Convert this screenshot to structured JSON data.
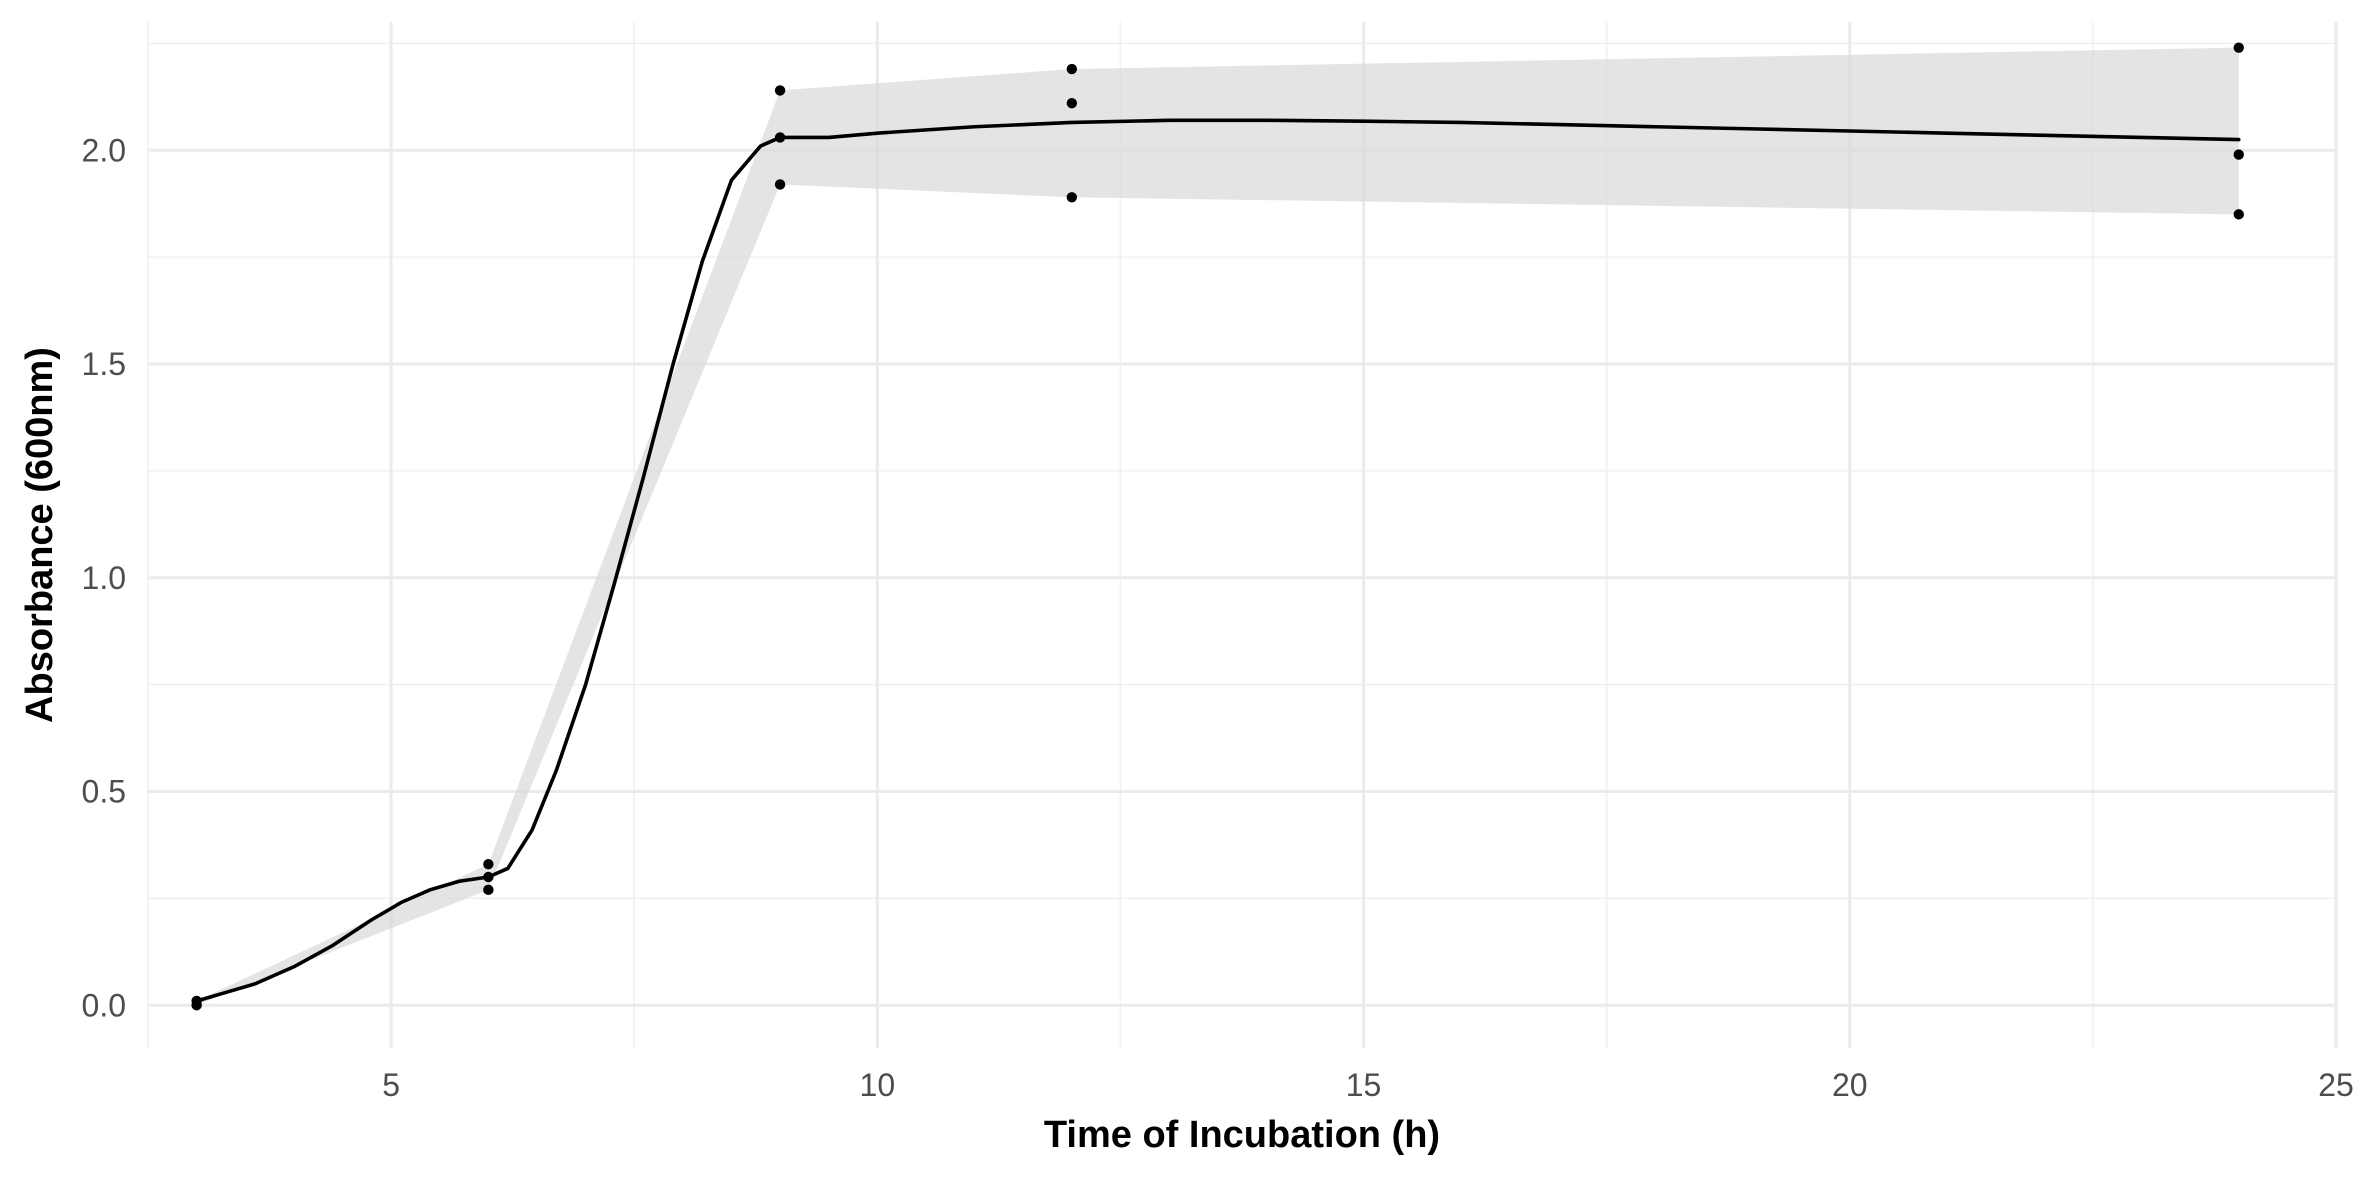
{
  "chart_data": {
    "type": "scatter",
    "title": "",
    "xlabel": "Time of Incubation (h)",
    "ylabel": "Absorbance (600nm)",
    "xlim": [
      2.5,
      25
    ],
    "ylim": [
      -0.1,
      2.3
    ],
    "x_ticks": [
      5,
      10,
      15,
      20,
      25
    ],
    "x_tick_labels": [
      "5",
      "10",
      "15",
      "20",
      "25"
    ],
    "y_ticks": [
      0.0,
      0.5,
      1.0,
      1.5,
      2.0
    ],
    "y_tick_labels": [
      "0.0",
      "0.5",
      "1.0",
      "1.5",
      "2.0"
    ],
    "grid": true,
    "legend": "none",
    "colors": {
      "points": "#000000",
      "line": "#000000",
      "ribbon": "#d9d9d9",
      "grid": "#ebebeb"
    },
    "series": [
      {
        "type": "scatter",
        "x": [
          3,
          3,
          6,
          6,
          6,
          9,
          9,
          9,
          12,
          12,
          12,
          24,
          24,
          24
        ],
        "y": [
          0.01,
          0.0,
          0.33,
          0.3,
          0.27,
          2.14,
          2.03,
          1.92,
          2.19,
          2.11,
          1.89,
          2.24,
          1.99,
          1.85
        ]
      },
      {
        "type": "smooth-line",
        "x": [
          3,
          3.3,
          3.6,
          4,
          4.4,
          4.8,
          5.1,
          5.4,
          5.7,
          6,
          6.2,
          6.45,
          6.7,
          7,
          7.3,
          7.6,
          7.9,
          8.2,
          8.5,
          8.8,
          9,
          9.5,
          10,
          11,
          12,
          13,
          14,
          15,
          16,
          17,
          18,
          19,
          20,
          21,
          22,
          23,
          24
        ],
        "y": [
          0.01,
          0.03,
          0.05,
          0.09,
          0.14,
          0.2,
          0.24,
          0.27,
          0.29,
          0.3,
          0.32,
          0.41,
          0.55,
          0.75,
          0.99,
          1.24,
          1.5,
          1.74,
          1.93,
          2.01,
          2.03,
          2.03,
          2.04,
          2.055,
          2.065,
          2.07,
          2.07,
          2.068,
          2.065,
          2.06,
          2.055,
          2.05,
          2.045,
          2.04,
          2.035,
          2.03,
          2.025
        ]
      },
      {
        "type": "ribbon",
        "x": [
          3,
          6,
          9,
          12,
          24
        ],
        "ymin": [
          0.0,
          0.27,
          1.92,
          1.89,
          1.85
        ],
        "ymax": [
          0.01,
          0.33,
          2.14,
          2.19,
          2.24
        ]
      }
    ]
  }
}
